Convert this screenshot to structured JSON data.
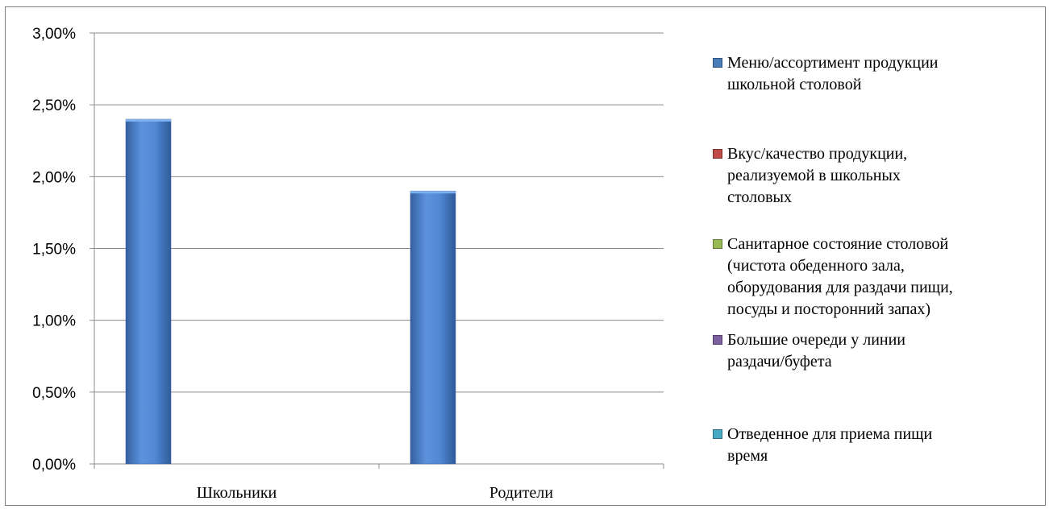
{
  "chart_data": {
    "type": "bar",
    "categories": [
      "Школьники",
      "Родители"
    ],
    "series": [
      {
        "name": "Меню/ассортимент продукции\nшкольной столовой",
        "values": [
          0.024,
          0.019
        ],
        "color": "#4a7ebb"
      },
      {
        "name": "Вкус/качество продукции,\nреализуемой в школьных\nстоловых",
        "values": [
          0,
          0
        ],
        "color": "#be4b48"
      },
      {
        "name": "Санитарное состояние столовой\n(чистота обеденного зала,\nоборудования для раздачи пищи,\nпосуды и посторонний запах)",
        "values": [
          0,
          0
        ],
        "color": "#98b954"
      },
      {
        "name": "Большие очереди у линии\nраздачи/буфета",
        "values": [
          0,
          0
        ],
        "color": "#7d60a0"
      },
      {
        "name": "Отведенное для приема пищи\nвремя",
        "values": [
          0,
          0
        ],
        "color": "#46aac5"
      }
    ],
    "yticks": [
      "0,00%",
      "0,50%",
      "1,00%",
      "1,50%",
      "2,00%",
      "2,50%",
      "3,00%"
    ],
    "ylim": [
      0,
      0.03
    ],
    "grid": true,
    "legend": "right"
  }
}
